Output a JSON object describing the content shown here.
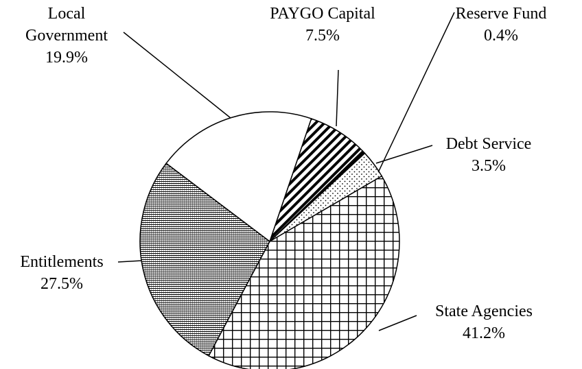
{
  "chart_data": {
    "type": "pie",
    "categories": [
      "PAYGO Capital",
      "Reserve Fund",
      "Debt Service",
      "State Agencies",
      "Entitlements",
      "Local Government"
    ],
    "values": [
      7.5,
      0.4,
      3.5,
      41.2,
      27.5,
      19.9
    ],
    "value_labels": [
      "7.5%",
      "0.4%",
      "3.5%",
      "41.2%",
      "27.5%",
      "19.9%"
    ]
  }
}
